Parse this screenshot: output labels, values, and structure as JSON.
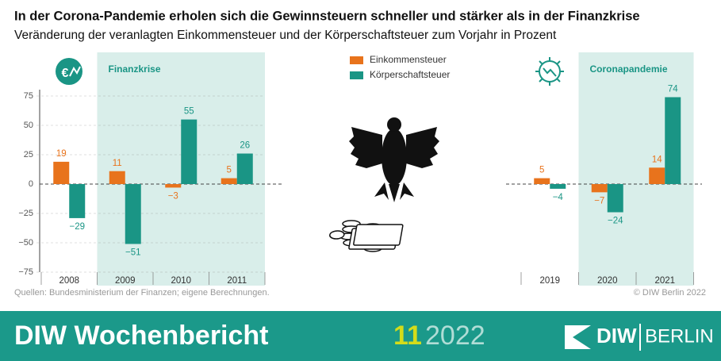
{
  "title": "In der Corona-Pandemie erholen sich die Gewinnsteuern schneller und stärker als in der Finanzkrise",
  "subtitle": "Veränderung der veranlagten Einkommensteuer und der Körperschaftsteuer zum Vorjahr in Prozent",
  "chart_data": [
    {
      "type": "bar",
      "highlight_label": "Finanzkrise",
      "highlight_start": "2009",
      "categories": [
        "2008",
        "2009",
        "2010",
        "2011"
      ],
      "series": [
        {
          "name": "Einkommensteuer",
          "color": "#e8731c",
          "values": [
            19,
            11,
            -3,
            5
          ],
          "value_labels": [
            "19",
            "11",
            "−3",
            "5"
          ]
        },
        {
          "name": "Körperschaftsteuer",
          "color": "#1a9585",
          "values": [
            -29,
            -51,
            55,
            26
          ],
          "value_labels": [
            "−29",
            "−51",
            "55",
            "26"
          ]
        }
      ],
      "ylim": [
        -75,
        75
      ],
      "yticks": [
        75,
        50,
        25,
        0,
        {
          "value": -25,
          "label": "−25"
        },
        {
          "value": -50,
          "label": "−50"
        },
        {
          "value": -75,
          "label": "−75"
        }
      ]
    },
    {
      "type": "bar",
      "highlight_label": "Coronapandemie",
      "highlight_start": "2020",
      "categories": [
        "2019",
        "2020",
        "2021"
      ],
      "series": [
        {
          "color": "#e8731c",
          "values": [
            5,
            -7,
            14
          ],
          "value_labels": [
            "5",
            "−7",
            "14"
          ]
        },
        {
          "color": "#1a9585",
          "values": [
            -4,
            -24,
            74
          ],
          "value_labels": [
            "−4",
            "−24",
            "74"
          ]
        }
      ],
      "ylim": [
        -75,
        75
      ]
    }
  ],
  "source": "Quellen: Bundesministerium der Finanzen; eigene Berechnungen.",
  "copyright": "© DIW Berlin 2022",
  "footer": {
    "publication": "DIW Wochenbericht",
    "issue": "11",
    "year": "2022",
    "brand": "DIW",
    "brand_city": "BERLIN"
  }
}
